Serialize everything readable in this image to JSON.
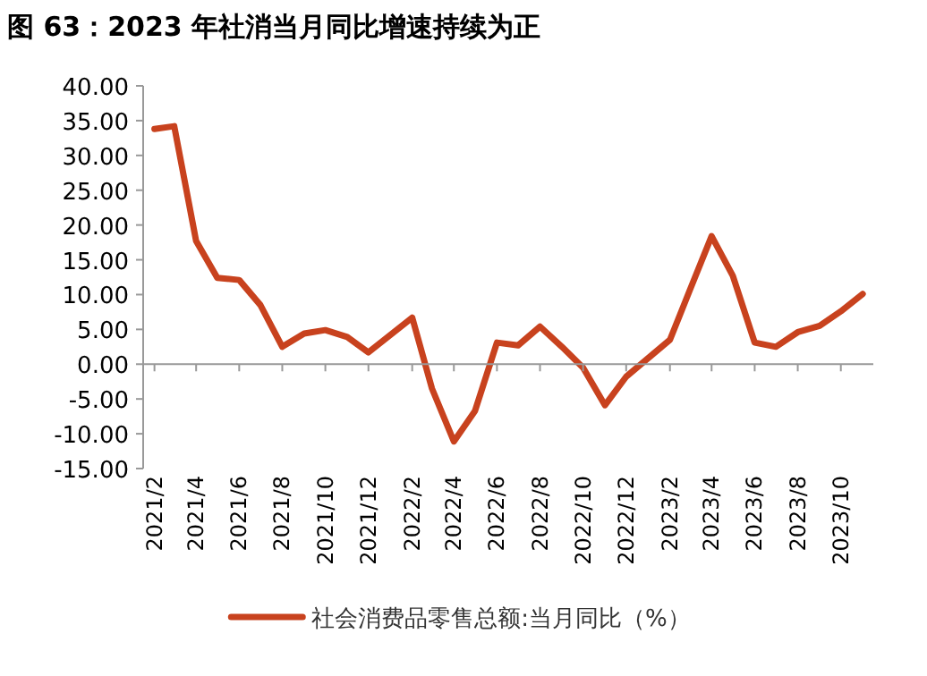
{
  "chart_data": {
    "type": "line",
    "title": "图 63：2023 年社消当月同比增速持续为正",
    "x": [
      "2021-02",
      "2021-03",
      "2021-04",
      "2021-05",
      "2021-06",
      "2021-07",
      "2021-08",
      "2021-09",
      "2021-10",
      "2021-11",
      "2021-12",
      "2022-02",
      "2022-03",
      "2022-04",
      "2022-05",
      "2022-06",
      "2022-07",
      "2022-08",
      "2022-09",
      "2022-10",
      "2022-11",
      "2022-12",
      "2023-02",
      "2023-03",
      "2023-04",
      "2023-05",
      "2023-06",
      "2023-07",
      "2023-08",
      "2023-09",
      "2023-10",
      "2023-11"
    ],
    "series": [
      {
        "name": "社会消费品零售总额:当月同比（%）",
        "color": "#c8421e",
        "values": [
          33.8,
          34.2,
          17.7,
          12.4,
          12.1,
          8.5,
          2.5,
          4.4,
          4.9,
          3.9,
          1.7,
          6.7,
          -3.5,
          -11.1,
          -6.7,
          3.1,
          2.7,
          5.4,
          2.5,
          -0.5,
          -5.9,
          -1.8,
          3.5,
          10.6,
          18.4,
          12.7,
          3.1,
          2.5,
          4.6,
          5.5,
          7.6,
          10.1
        ]
      }
    ],
    "xlim": [
      "2021-01-16",
      "2023-11-16"
    ],
    "xticks": [
      {
        "value": "2021-02",
        "label": "2021/2"
      },
      {
        "value": "2021-04",
        "label": "2021/4"
      },
      {
        "value": "2021-06",
        "label": "2021/6"
      },
      {
        "value": "2021-08",
        "label": "2021/8"
      },
      {
        "value": "2021-10",
        "label": "2021/10"
      },
      {
        "value": "2021-12",
        "label": "2021/12"
      },
      {
        "value": "2022-02",
        "label": "2022/2"
      },
      {
        "value": "2022-04",
        "label": "2022/4"
      },
      {
        "value": "2022-06",
        "label": "2022/6"
      },
      {
        "value": "2022-08",
        "label": "2022/8"
      },
      {
        "value": "2022-10",
        "label": "2022/10"
      },
      {
        "value": "2022-12",
        "label": "2022/12"
      },
      {
        "value": "2023-02",
        "label": "2023/2"
      },
      {
        "value": "2023-04",
        "label": "2023/4"
      },
      {
        "value": "2023-06",
        "label": "2023/6"
      },
      {
        "value": "2023-08",
        "label": "2023/8"
      },
      {
        "value": "2023-10",
        "label": "2023/10"
      }
    ],
    "ylim": [
      -15,
      40
    ],
    "yticks": [
      {
        "value": -15,
        "label": "-15.00"
      },
      {
        "value": -10,
        "label": "-10.00"
      },
      {
        "value": -5,
        "label": "-5.00"
      },
      {
        "value": 0,
        "label": "0.00"
      },
      {
        "value": 5,
        "label": "5.00"
      },
      {
        "value": 10,
        "label": "10.00"
      },
      {
        "value": 15,
        "label": "15.00"
      },
      {
        "value": 20,
        "label": "20.00"
      },
      {
        "value": 25,
        "label": "25.00"
      },
      {
        "value": 30,
        "label": "30.00"
      },
      {
        "value": 35,
        "label": "35.00"
      },
      {
        "value": 40,
        "label": "40.00"
      }
    ],
    "ref_lines": [
      {
        "axis": "y",
        "value": 0,
        "color": "#999999"
      }
    ],
    "legend": "bottom",
    "grid": false,
    "marker": "none",
    "line_style": "solid"
  }
}
